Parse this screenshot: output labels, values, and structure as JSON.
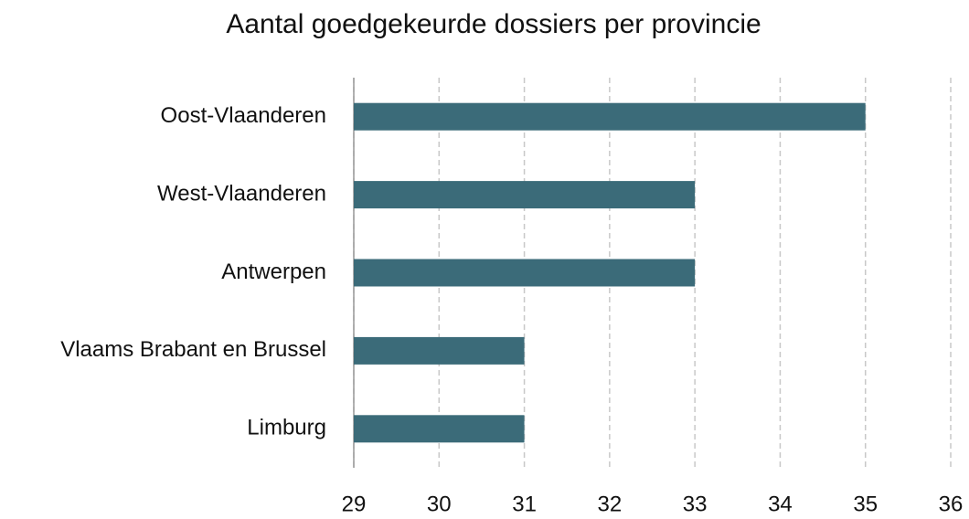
{
  "chart_data": {
    "type": "bar",
    "orientation": "horizontal",
    "title": "Aantal goedgekeurde dossiers per provincie",
    "categories": [
      "Oost-Vlaanderen",
      "West-Vlaanderen",
      "Antwerpen",
      "Vlaams Brabant en Brussel",
      "Limburg"
    ],
    "values": [
      35,
      33,
      33,
      31,
      31
    ],
    "color": "#3b6b79",
    "xlim": [
      29,
      36
    ],
    "xticks": [
      29,
      30,
      31,
      32,
      33,
      34,
      35,
      36
    ],
    "grid": true
  }
}
